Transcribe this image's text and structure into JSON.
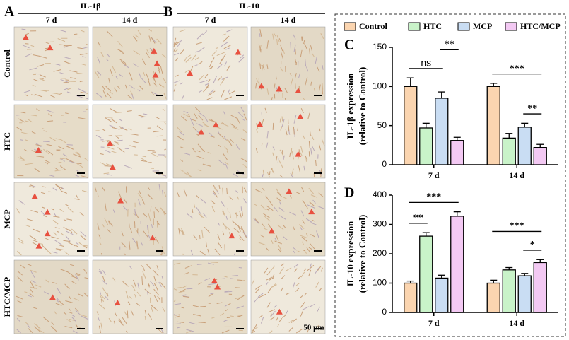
{
  "panels": [
    {
      "letter": "A",
      "title": "IL-1β",
      "columns": [
        "7 d",
        "14 d"
      ]
    },
    {
      "letter": "B",
      "title": "IL-10",
      "columns": [
        "7 d",
        "14 d"
      ]
    }
  ],
  "rows": [
    "Control",
    "HTC",
    "MCP",
    "HTC/MCP"
  ],
  "scale_bar": "50 μm",
  "legend": [
    {
      "name": "Control",
      "color": "#fbd5b0"
    },
    {
      "name": "HTC",
      "color": "#c9f3c9"
    },
    {
      "name": "MCP",
      "color": "#c9ddf3"
    },
    {
      "name": "HTC/MCP",
      "color": "#f3c9f3"
    }
  ],
  "chart_data": [
    {
      "type": "bar",
      "letter": "C",
      "ylabel": [
        "IL-1β expression",
        "(relative to Control)"
      ],
      "categories": [
        "7 d",
        "14 d"
      ],
      "series": [
        {
          "values": [
            100,
            100
          ],
          "errors": [
            11,
            4
          ]
        },
        {
          "values": [
            47,
            34
          ],
          "errors": [
            6,
            6
          ]
        },
        {
          "values": [
            85,
            48
          ],
          "errors": [
            8,
            5
          ]
        },
        {
          "values": [
            31,
            22
          ],
          "errors": [
            4,
            4
          ]
        }
      ],
      "ylim": [
        0,
        150
      ],
      "yticks": [
        0,
        50,
        100,
        150
      ],
      "annotations": [
        {
          "category": 0,
          "from": 0,
          "to": 2,
          "label": "ns"
        },
        {
          "category": 0,
          "from": 2,
          "to": 3,
          "label": "**"
        },
        {
          "category": 1,
          "from": 2,
          "to": 3,
          "label": "**"
        },
        {
          "category": 1,
          "from": 0,
          "to": 3,
          "label": "***"
        }
      ]
    },
    {
      "type": "bar",
      "letter": "D",
      "ylabel": [
        "IL-10 expression",
        "(relative to Control)"
      ],
      "categories": [
        "7 d",
        "14 d"
      ],
      "series": [
        {
          "values": [
            100,
            100
          ],
          "errors": [
            7,
            10
          ]
        },
        {
          "values": [
            260,
            145
          ],
          "errors": [
            12,
            8
          ]
        },
        {
          "values": [
            117,
            125
          ],
          "errors": [
            10,
            8
          ]
        },
        {
          "values": [
            328,
            170
          ],
          "errors": [
            15,
            10
          ]
        }
      ],
      "ylim": [
        0,
        400
      ],
      "yticks": [
        0,
        100,
        200,
        300,
        400
      ],
      "annotations": [
        {
          "category": 0,
          "from": 0,
          "to": 1,
          "label": "**"
        },
        {
          "category": 0,
          "from": 0,
          "to": 3,
          "label": "***"
        },
        {
          "category": 1,
          "from": 2,
          "to": 3,
          "label": "*"
        },
        {
          "category": 1,
          "from": 0,
          "to": 3,
          "label": "***"
        }
      ]
    }
  ]
}
